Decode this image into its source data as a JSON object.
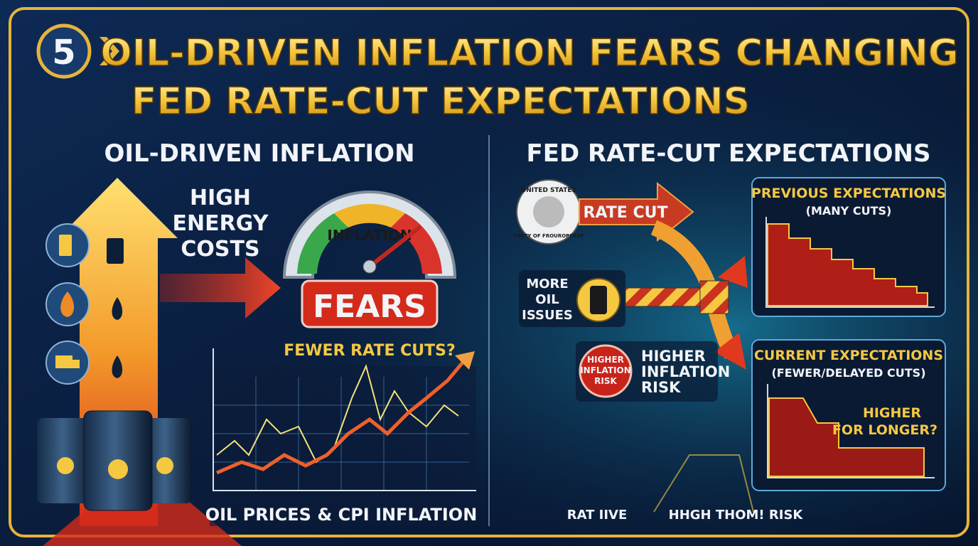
{
  "header": {
    "badge": "5",
    "title_lines": [
      "OIL-DRIVEN INFLATION FEARS CHANGING",
      "FED RATE-CUT EXPECTATIONS"
    ]
  },
  "left_panel": {
    "heading": "OIL-DRIVEN INFLATION",
    "energy_label": [
      "HIGH",
      "ENERGY",
      "COSTS"
    ],
    "gauge": {
      "label": "INFLATION",
      "badge": "FEARS",
      "caption": "FEWER RATE CUTS?"
    },
    "chart_label": "OIL PRICES & CPI INFLATION"
  },
  "right_panel": {
    "heading": "FED RATE-CUT EXPECTATIONS",
    "seal": {
      "top": "UNITED STATES",
      "bottom": "FBETY OF FROUROPERAY"
    },
    "rate_cut": "RATE CUT",
    "oil_issues": [
      "MORE",
      "OIL",
      "ISSUES"
    ],
    "risk_badge": [
      "HIGHER",
      "INFLATION",
      "RISK"
    ],
    "risk_label": [
      "HIGHER",
      "INFLATION",
      "RISK"
    ],
    "previous": {
      "title": "PREVIOUS EXPECTATIONS",
      "subtitle": "(MANY CUTS)"
    },
    "current": {
      "title": "CURRENT EXPECTATIONS",
      "subtitle": "(FEWER/DELAYED CUTS)",
      "note": [
        "HIGHER",
        "FOR LONGER?"
      ]
    },
    "footer": [
      "RAT IIVE",
      "HHGH THOM! RISK"
    ]
  }
}
